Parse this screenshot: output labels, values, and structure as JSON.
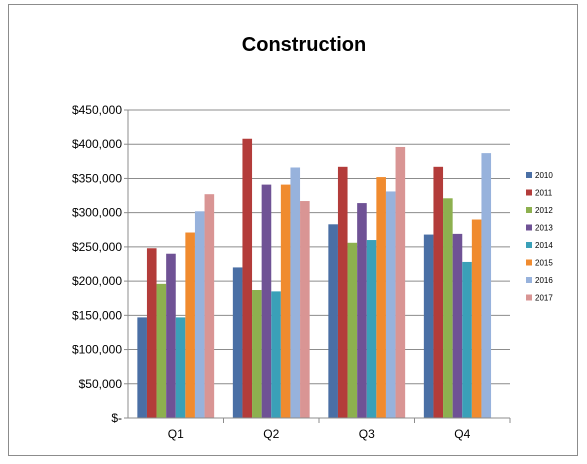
{
  "chart_data": {
    "type": "bar",
    "title": "Construction",
    "categories": [
      "Q1",
      "Q2",
      "Q3",
      "Q4"
    ],
    "ylim": [
      0,
      450000
    ],
    "y_ticks": [
      0,
      50000,
      100000,
      150000,
      200000,
      250000,
      300000,
      350000,
      400000,
      450000
    ],
    "y_tick_labels": [
      "$-",
      "$50,000",
      "$100,000",
      "$150,000",
      "$200,000",
      "$250,000",
      "$300,000",
      "$350,000",
      "$400,000",
      "$450,000"
    ],
    "grid": true,
    "legend_position": "right",
    "series": [
      {
        "name": "2010",
        "color": "#4a6fa5",
        "values": [
          147000,
          220000,
          283000,
          268000
        ]
      },
      {
        "name": "2011",
        "color": "#b33c3a",
        "values": [
          248000,
          408000,
          367000,
          367000
        ]
      },
      {
        "name": "2012",
        "color": "#8db04f",
        "values": [
          196000,
          187000,
          256000,
          321000
        ]
      },
      {
        "name": "2013",
        "color": "#6f5295",
        "values": [
          240000,
          341000,
          314000,
          269000
        ]
      },
      {
        "name": "2014",
        "color": "#3aa0b8",
        "values": [
          147000,
          185000,
          260000,
          228000
        ]
      },
      {
        "name": "2015",
        "color": "#f08b2f",
        "values": [
          271000,
          341000,
          352000,
          290000
        ]
      },
      {
        "name": "2016",
        "color": "#97b2dc",
        "values": [
          302000,
          366000,
          331000,
          387000
        ]
      },
      {
        "name": "2017",
        "color": "#d99594",
        "values": [
          327000,
          317000,
          396000,
          0
        ]
      }
    ]
  }
}
